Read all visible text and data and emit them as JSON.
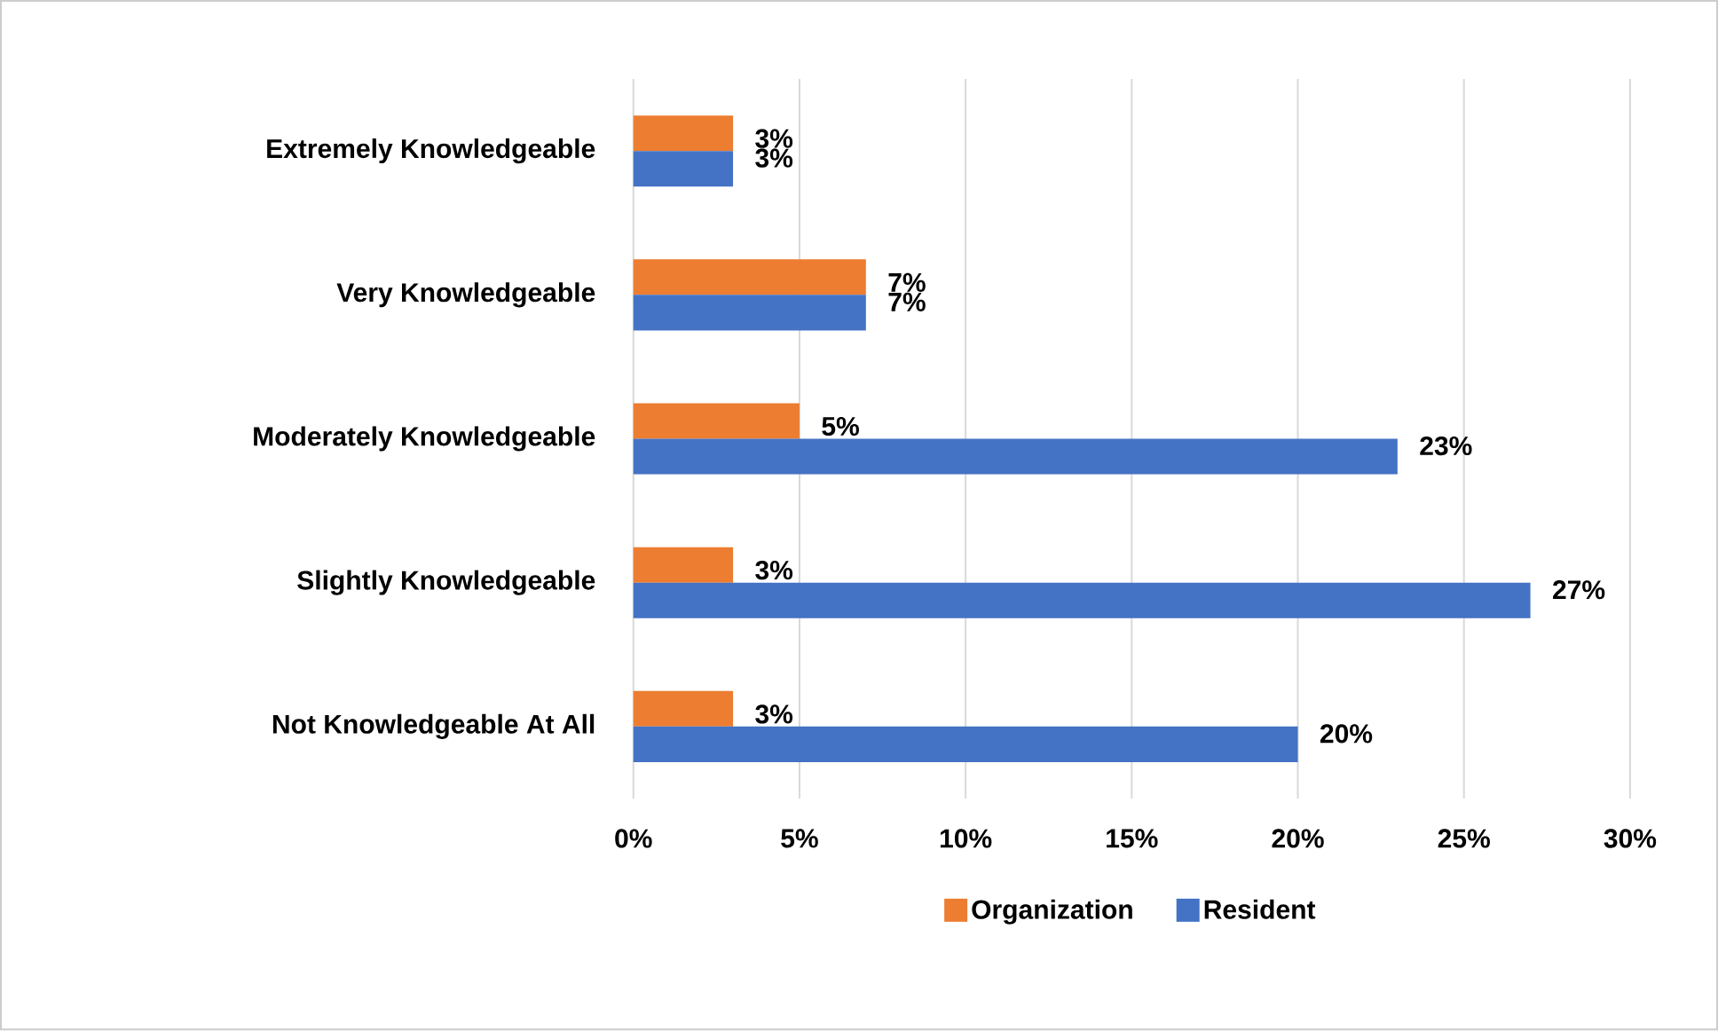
{
  "chart_data": {
    "type": "bar",
    "orientation": "horizontal",
    "categories": [
      "Extremely Knowledgeable",
      "Very Knowledgeable",
      "Moderately Knowledgeable",
      "Slightly Knowledgeable",
      "Not Knowledgeable At All"
    ],
    "series": [
      {
        "name": "Organization",
        "color": "#ed7d31",
        "values": [
          3,
          7,
          5,
          3,
          3
        ],
        "value_labels": [
          "3%",
          "7%",
          "5%",
          "3%",
          "3%"
        ]
      },
      {
        "name": "Resident",
        "color": "#4472c4",
        "values": [
          3,
          7,
          23,
          27,
          20
        ],
        "value_labels": [
          "3%",
          "7%",
          "23%",
          "27%",
          "20%"
        ]
      }
    ],
    "xlim": [
      0,
      30
    ],
    "xticks": [
      {
        "value": 0,
        "label": "0%"
      },
      {
        "value": 5,
        "label": "5%"
      },
      {
        "value": 10,
        "label": "10%"
      },
      {
        "value": 15,
        "label": "15%"
      },
      {
        "value": 20,
        "label": "20%"
      },
      {
        "value": 25,
        "label": "25%"
      },
      {
        "value": 30,
        "label": "30%"
      }
    ],
    "grid": "x",
    "legend": "bottom"
  }
}
